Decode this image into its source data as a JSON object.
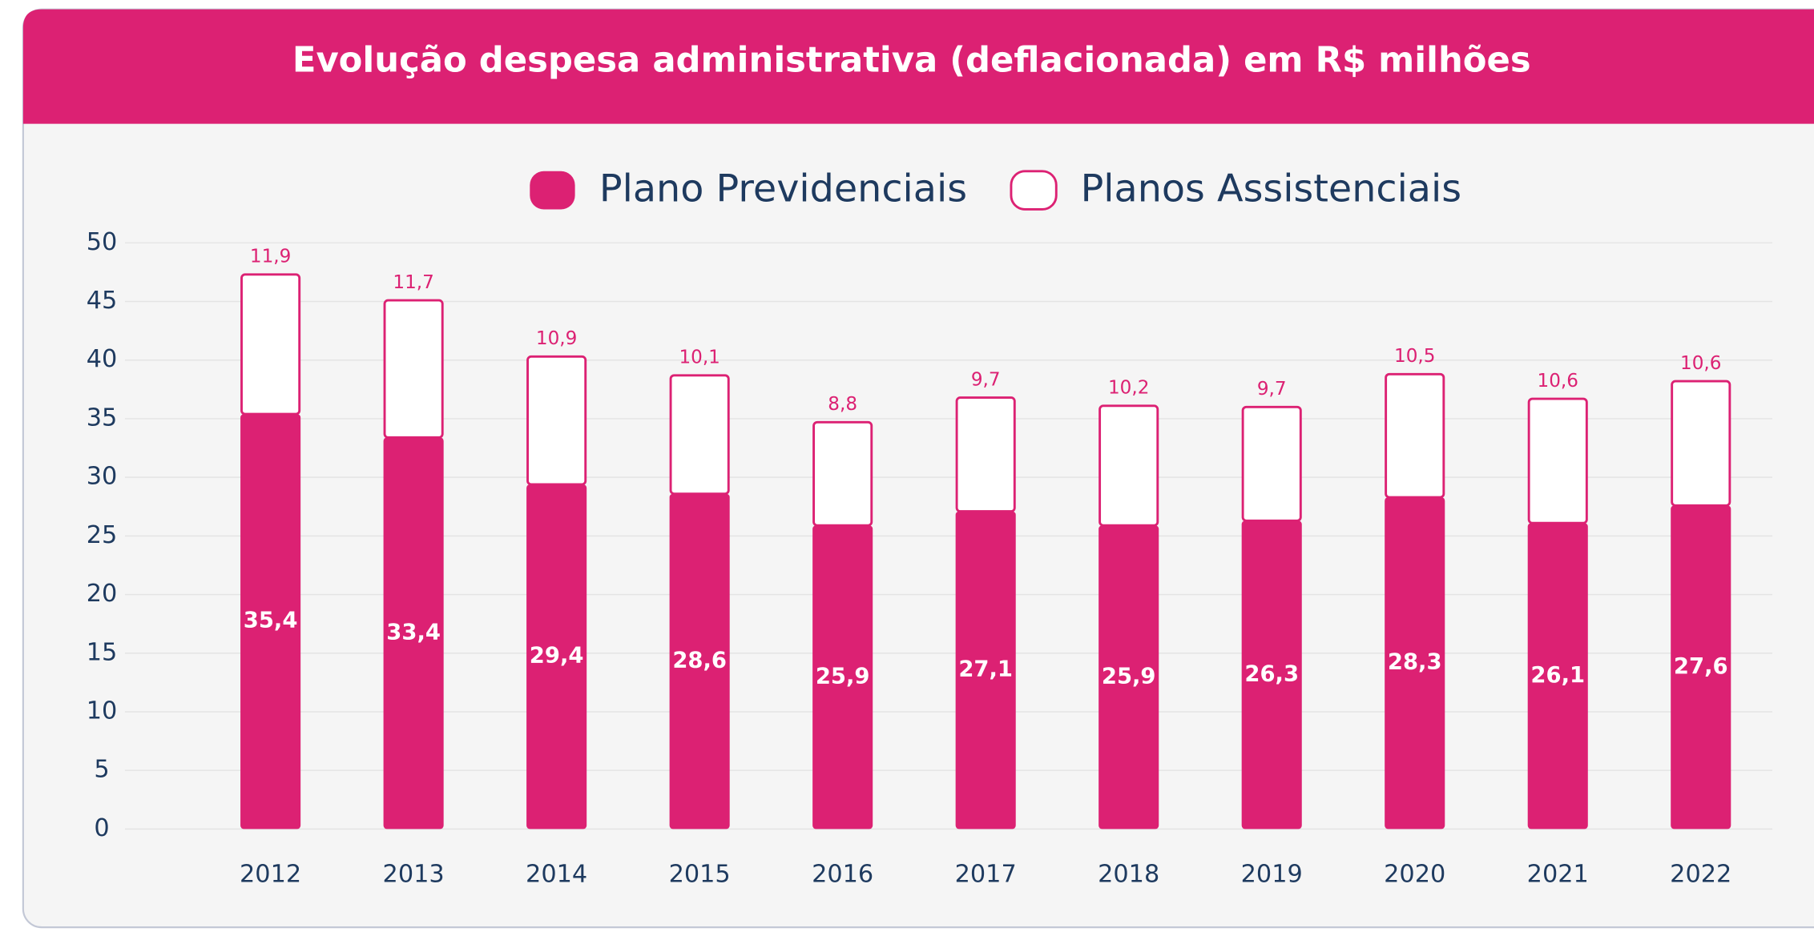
{
  "chart_data": {
    "type": "stacked_bar",
    "title": "Evolução despesa administrativa (deflacionada) em R$ milhões",
    "categories": [
      "2012",
      "2013",
      "2014",
      "2015",
      "2016",
      "2017",
      "2018",
      "2019",
      "2020",
      "2021",
      "2022"
    ],
    "series": [
      {
        "name": "Plano Previdenciais",
        "color": "#dc2173",
        "values": [
          35.4,
          33.4,
          29.4,
          28.6,
          25.9,
          27.1,
          25.9,
          26.3,
          28.3,
          26.1,
          27.6
        ],
        "value_labels": [
          "35,4",
          "33,4",
          "29,4",
          "28,6",
          "25,9",
          "27,1",
          "25,9",
          "26,3",
          "28,3",
          "26,1",
          "27,6"
        ]
      },
      {
        "name": "Planos Assistenciais",
        "color": "#ffffff",
        "values": [
          11.9,
          11.7,
          10.9,
          10.1,
          8.8,
          9.7,
          10.2,
          9.7,
          10.5,
          10.6,
          10.6
        ],
        "value_labels": [
          "11,9",
          "11,7",
          "10,9",
          "10,1",
          "8,8",
          "9,7",
          "10,2",
          "9,7",
          "10,5",
          "10,6",
          "10,6"
        ]
      }
    ],
    "ylim": [
      0,
      50
    ],
    "yticks": [
      0,
      5,
      10,
      15,
      20,
      25,
      30,
      35,
      40,
      45,
      50
    ],
    "grid": true
  }
}
